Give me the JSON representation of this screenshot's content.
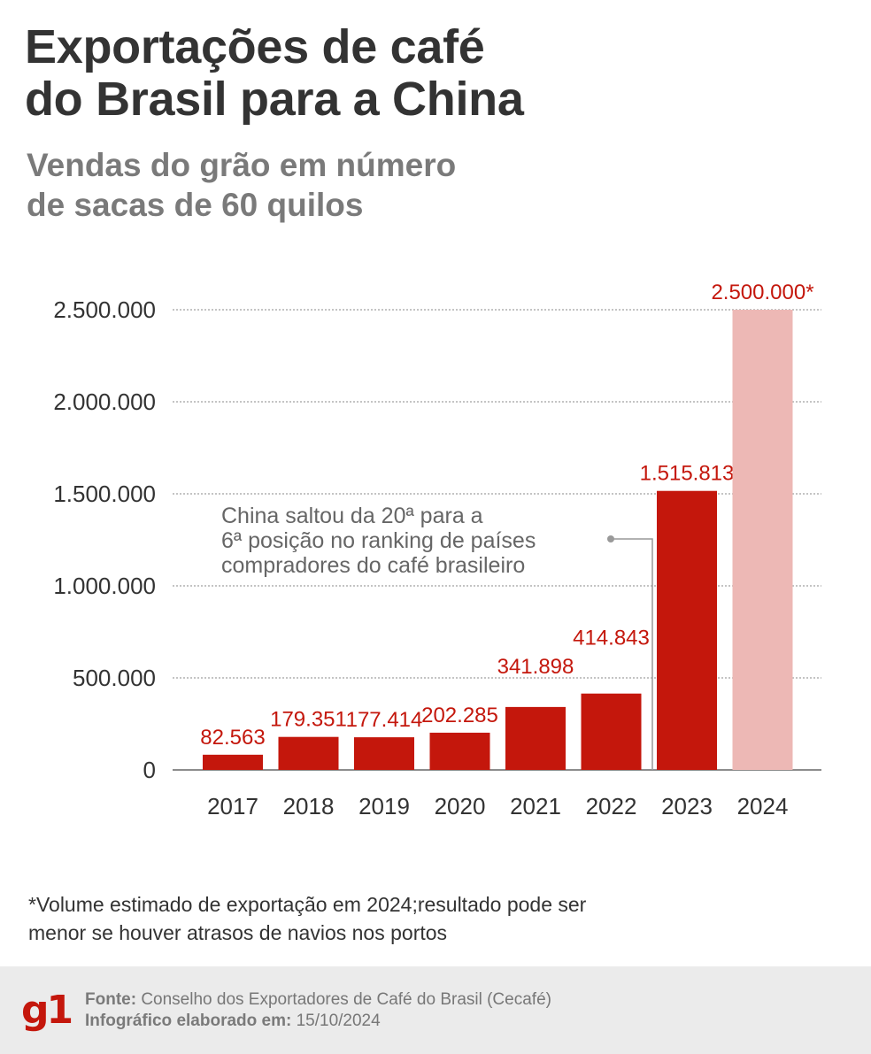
{
  "header": {
    "title_line1": "Exportações de café",
    "title_line2": "do Brasil para a China",
    "subtitle_line1": "Vendas do grão em número",
    "subtitle_line2": "de sacas de 60 quilos"
  },
  "chart_data": {
    "type": "bar",
    "categories": [
      "2017",
      "2018",
      "2019",
      "2020",
      "2021",
      "2022",
      "2023",
      "2024"
    ],
    "values": [
      82563,
      179351,
      177414,
      202285,
      341898,
      414843,
      1515813,
      2500000
    ],
    "value_labels": [
      "82.563",
      "179.351",
      "177.414",
      "202.285",
      "341.898",
      "414.843",
      "1.515.813",
      "2.500.000*"
    ],
    "estimated": [
      false,
      false,
      false,
      false,
      false,
      false,
      false,
      true
    ],
    "ylim": [
      0,
      2500000
    ],
    "yticks": [
      0,
      500000,
      1000000,
      1500000,
      2000000,
      2500000
    ],
    "ytick_labels": [
      "0",
      "500.000",
      "1.000.000",
      "1.500.000",
      "2.000.000",
      "2.500.000"
    ],
    "grid": true,
    "annotation": {
      "lines": [
        "China saltou da 20ª para a",
        "6ª posição no ranking de países",
        "compradores do café brasileiro"
      ],
      "target_category": "2023"
    },
    "colors": {
      "bar": "#c4170c",
      "estimated_bar": "#edb8b5",
      "value_label": "#c4170c",
      "grid": "#888888",
      "axis_text": "#333333",
      "annotation_text": "#666666",
      "annotation_line": "#999999"
    }
  },
  "footnote": {
    "line1": "*Volume estimado de exportação em 2024;resultado pode ser",
    "line2": "menor se houver atrasos de navios nos portos"
  },
  "footer": {
    "logo": "g1",
    "source_label": "Fonte:",
    "source_value": "Conselho dos Exportadores de Café do Brasil (Cecafé)",
    "date_label": "Infográfico elaborado em:",
    "date_value": "15/10/2024",
    "logo_icon": "g1-logo-icon"
  }
}
